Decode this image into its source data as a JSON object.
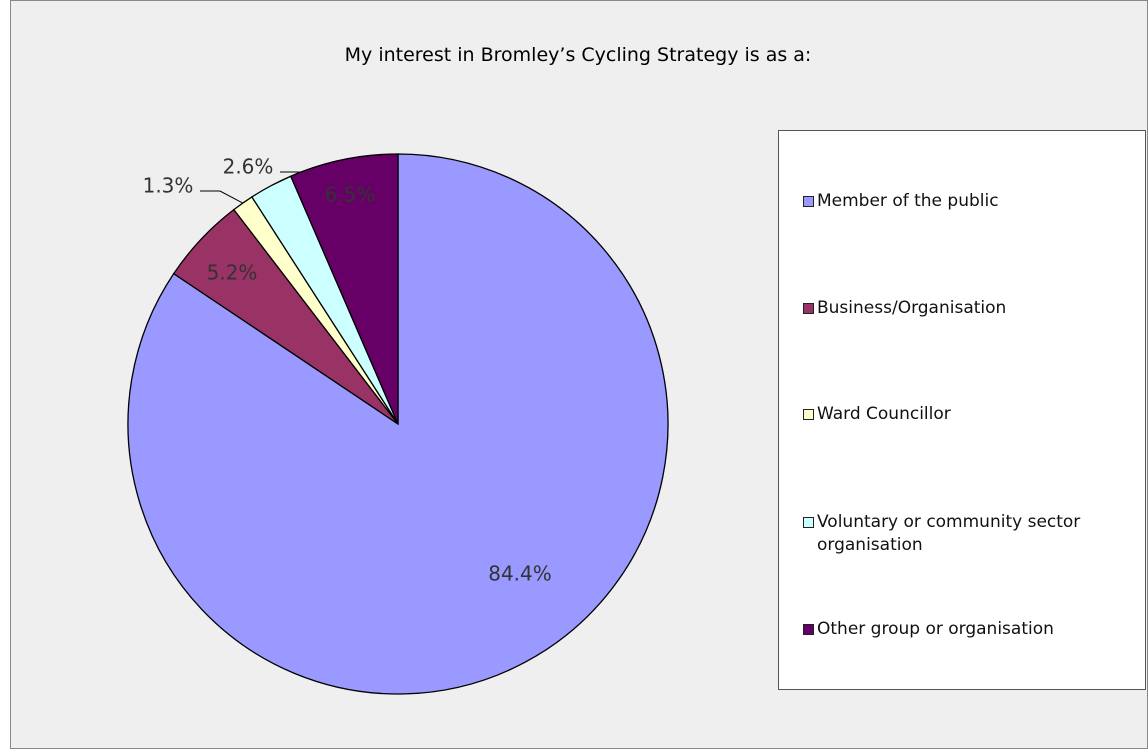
{
  "chart_data": {
    "type": "pie",
    "title": "My interest in Bromley’s Cycling Strategy is as a:",
    "categories": [
      "Member of the public",
      "Business/Organisation",
      "Ward Councillor",
      "Voluntary or community sector organisation",
      "Other group or organisation"
    ],
    "values": [
      84.4,
      5.2,
      1.3,
      2.6,
      6.5
    ],
    "value_labels": [
      "84.4%",
      "5.2%",
      "1.3%",
      "2.6%",
      "6.5%"
    ],
    "colors": [
      "#9999ff",
      "#993366",
      "#ffffcc",
      "#ccffff",
      "#660066"
    ],
    "legend": "right"
  }
}
